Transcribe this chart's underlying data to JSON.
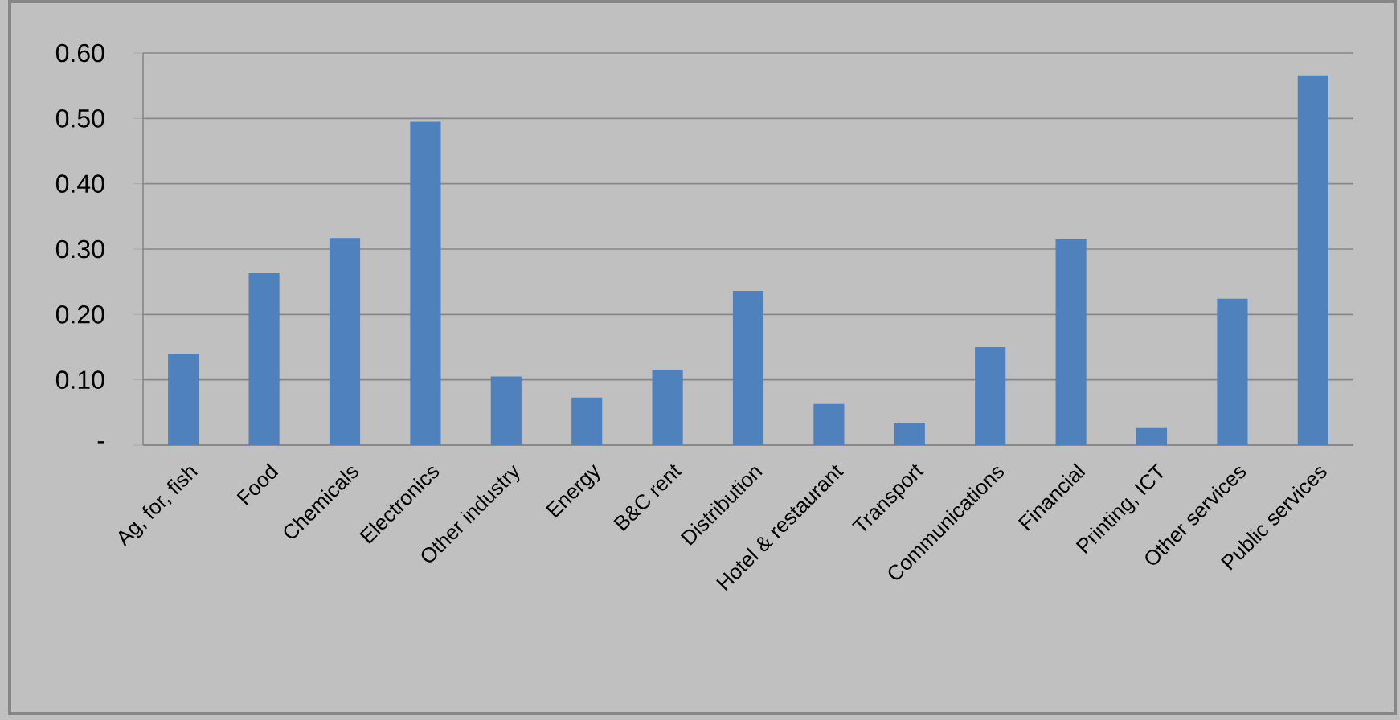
{
  "chart_data": {
    "type": "bar",
    "categories": [
      "Ag, for, fish",
      "Food",
      "Chemicals",
      "Electronics",
      "Other industry",
      "Energy",
      "B&C rent",
      "Distribution",
      "Hotel & restaurant",
      "Transport",
      "Communications",
      "Financial",
      "Printing, ICT",
      "Other services",
      "Public services"
    ],
    "values": [
      0.14,
      0.263,
      0.317,
      0.495,
      0.105,
      0.073,
      0.115,
      0.236,
      0.063,
      0.034,
      0.15,
      0.315,
      0.026,
      0.224,
      0.566
    ],
    "color": "#4f81bd",
    "ylim": [
      0,
      0.6
    ],
    "yticks": [
      {
        "value": 0,
        "label": "-"
      },
      {
        "value": 0.1,
        "label": "0.10"
      },
      {
        "value": 0.2,
        "label": "0.20"
      },
      {
        "value": 0.3,
        "label": "0.30"
      },
      {
        "value": 0.4,
        "label": "0.40"
      },
      {
        "value": 0.5,
        "label": "0.50"
      },
      {
        "value": 0.6,
        "label": "0.60"
      }
    ],
    "grid": "y"
  }
}
